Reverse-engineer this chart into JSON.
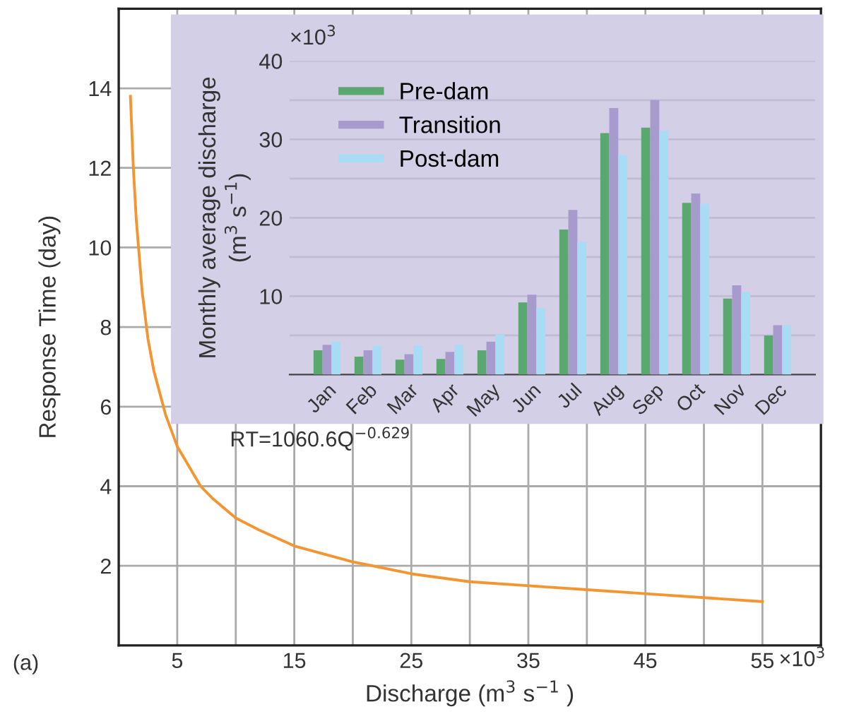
{
  "chart_data": [
    {
      "type": "line",
      "xlabel": "Discharge (m$^{3}$ s$^{−1}$ )",
      "ylabel": "Response Time (day)",
      "x": [
        1,
        1.25,
        1.5,
        2,
        2.5,
        3,
        4,
        5,
        6,
        7,
        8,
        10,
        12,
        15,
        20,
        25,
        30,
        35,
        40,
        45,
        50,
        55
      ],
      "series": [
        {
          "color": "#f39530",
          "values": [
            13.8,
            12.0,
            10.7,
            8.9,
            7.7,
            6.9,
            5.8,
            5.0,
            4.5,
            4.0,
            3.7,
            3.2,
            2.9,
            2.5,
            2.1,
            1.8,
            1.6,
            1.5,
            1.4,
            1.3,
            1.2,
            1.1
          ]
        }
      ],
      "xlim": [
        0,
        60
      ],
      "xticks": [
        5,
        {
          "value": 10,
          "label": null
        },
        15,
        {
          "value": 20,
          "label": null
        },
        25,
        {
          "value": 30,
          "label": null
        },
        35,
        {
          "value": 40,
          "label": null
        },
        45,
        {
          "value": 50,
          "label": null
        },
        55
      ],
      "ylim": [
        0,
        16
      ],
      "yticks": [
        2,
        4,
        6,
        8,
        10,
        12,
        14
      ],
      "annotations": [
        "RT=1060.6Q$^{−0.629}$",
        "(a)",
        "×10$^{3}$"
      ],
      "grid": true,
      "legend": false,
      "marker": "none",
      "line_style": "solid"
    },
    {
      "type": "bar",
      "ylabel": "Monthly average discharge\n(m$^{3}$ s$^{−1}$)",
      "categories": [
        "Jan",
        "Feb",
        "Mar",
        "Apr",
        "May",
        "Jun",
        "Jul",
        "Aug",
        "Sep",
        "Oct",
        "Nov",
        "Dec"
      ],
      "series": [
        {
          "name": "Pre-dam",
          "color": "#5aa870",
          "values": [
            3.1,
            2.3,
            1.9,
            2.0,
            3.1,
            9.2,
            18.5,
            30.8,
            31.5,
            21.9,
            9.7,
            5.0
          ]
        },
        {
          "name": "Transition",
          "color": "#a69bcc",
          "values": [
            3.8,
            3.1,
            2.6,
            2.9,
            4.2,
            10.2,
            21.0,
            34.0,
            35.0,
            23.1,
            11.4,
            6.3
          ]
        },
        {
          "name": "Post-dam",
          "color": "#a8dcf5",
          "values": [
            4.2,
            3.7,
            3.7,
            3.8,
            5.1,
            8.5,
            16.9,
            28.0,
            31.1,
            21.8,
            10.5,
            6.3
          ]
        }
      ],
      "ylim": [
        0,
        40
      ],
      "yticks": [
        {
          "value": 5,
          "label": null
        },
        10,
        {
          "value": 15,
          "label": null
        },
        20,
        {
          "value": 25,
          "label": null
        },
        30,
        {
          "value": 35,
          "label": null
        },
        40
      ],
      "annotations": [
        "×10$^{3}$"
      ],
      "grid": "y",
      "legend": "top left"
    }
  ]
}
